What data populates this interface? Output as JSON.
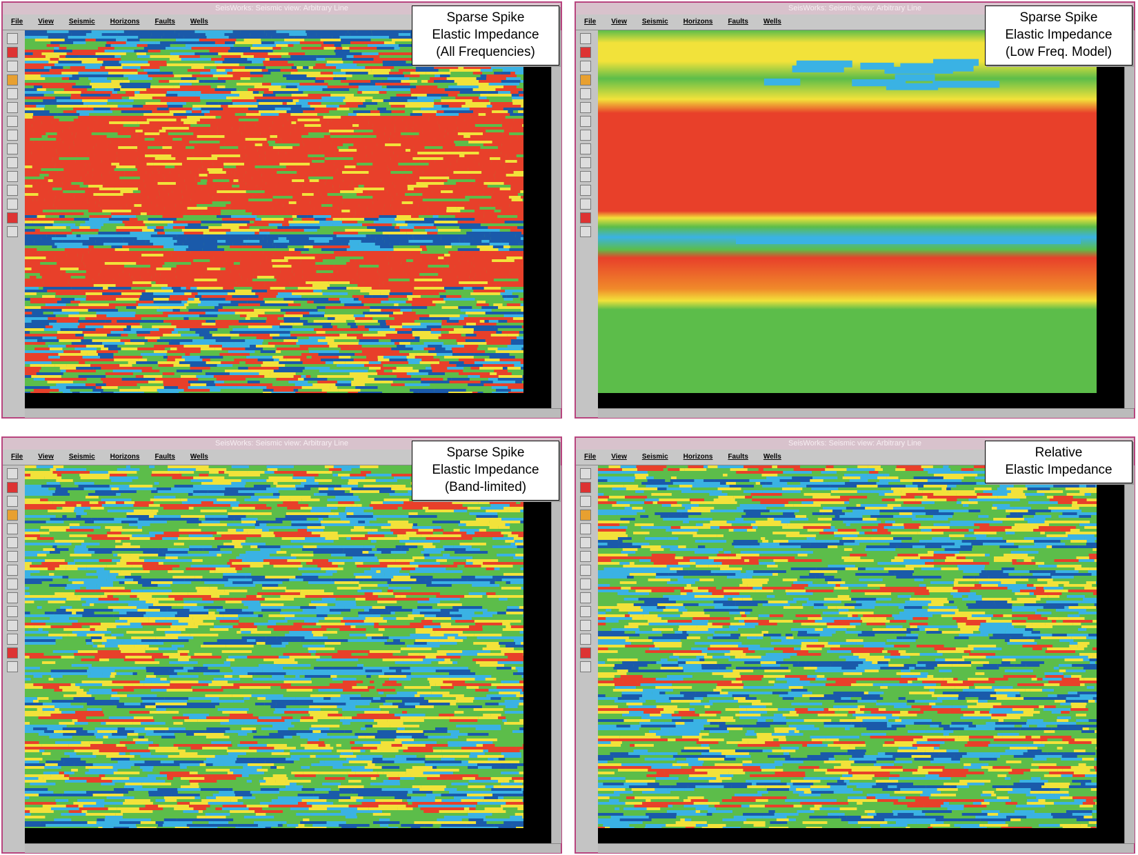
{
  "panels": [
    {
      "window_title": "SeisWorks: Seismic view: Arbitrary Line",
      "menu": [
        "File",
        "View",
        "Seismic",
        "Horizons",
        "Faults",
        "Wells"
      ],
      "label": [
        "Sparse Spike",
        "Elastic Impedance",
        "(All Frequencies)"
      ]
    },
    {
      "window_title": "SeisWorks: Seismic view: Arbitrary Line",
      "menu": [
        "File",
        "View",
        "Seismic",
        "Horizons",
        "Faults",
        "Wells"
      ],
      "label": [
        "Sparse Spike",
        "Elastic Impedance",
        "(Low Freq. Model)"
      ]
    },
    {
      "window_title": "SeisWorks: Seismic view: Arbitrary Line",
      "menu": [
        "File",
        "View",
        "Seismic",
        "Horizons",
        "Faults",
        "Wells"
      ],
      "label": [
        "Sparse Spike",
        "Elastic Impedance",
        "(Band-limited)"
      ]
    },
    {
      "window_title": "SeisWorks: Seismic view: Arbitrary Line",
      "menu": [
        "File",
        "View",
        "Seismic",
        "Horizons",
        "Faults",
        "Wells"
      ],
      "label": [
        "Relative",
        "Elastic Impedance"
      ]
    }
  ]
}
